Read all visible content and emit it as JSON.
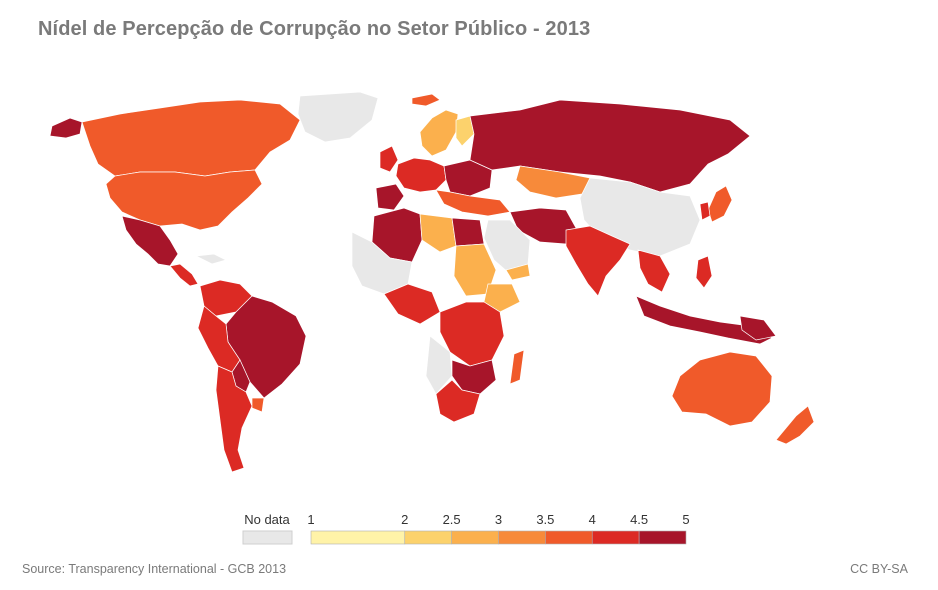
{
  "title": "Nídel de Percepção de Corrupção no Setor Público - 2013",
  "source": "Source: Transparency International - GCB 2013",
  "license": "CC BY-SA",
  "legend": {
    "no_data_label": "No data",
    "no_data_color": "#e8e8e8",
    "ticks": [
      "1",
      "2",
      "2.5",
      "3",
      "3.5",
      "4",
      "4.5",
      "5"
    ],
    "bins": [
      {
        "from": 1,
        "to": 2,
        "color": "#fff3a8"
      },
      {
        "from": 2,
        "to": 2.5,
        "color": "#fcd26c"
      },
      {
        "from": 2.5,
        "to": 3,
        "color": "#fbb04d"
      },
      {
        "from": 3,
        "to": 3.5,
        "color": "#f78a3a"
      },
      {
        "from": 3.5,
        "to": 4,
        "color": "#f05a2a"
      },
      {
        "from": 4,
        "to": 4.5,
        "color": "#dc2a24"
      },
      {
        "from": 4.5,
        "to": 5,
        "color": "#a7152a"
      }
    ]
  },
  "map": {
    "ocean": "#ffffff",
    "border": "#ffffff"
  }
}
